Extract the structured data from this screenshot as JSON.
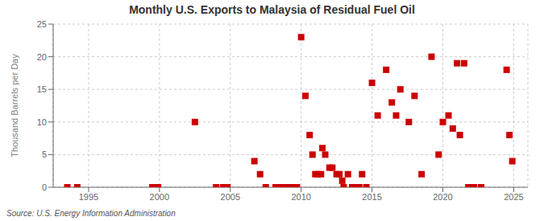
{
  "chart_data": {
    "type": "scatter",
    "title": "Monthly U.S. Exports to Malaysia of Residual Fuel Oil",
    "ylabel": "Thousand Barrels per Day",
    "annotation": "Source: U.S. Energy Information Administration",
    "color": "#cc0000",
    "marker": "square",
    "grid": true,
    "xlim": [
      1992.5,
      2026.0
    ],
    "ylim": [
      0,
      25
    ],
    "xticks": [
      1995,
      2000,
      2005,
      2010,
      2015,
      2020,
      2025
    ],
    "yticks": [
      0,
      5,
      10,
      15,
      20,
      25
    ],
    "x": [
      1993.5,
      1994.2,
      1999.5,
      1999.9,
      2002.5,
      2004.0,
      2004.5,
      2004.8,
      2006.7,
      2007.1,
      2007.5,
      2008.2,
      2008.5,
      2008.8,
      2009.0,
      2009.2,
      2009.5,
      2009.7,
      2010.0,
      2010.3,
      2010.6,
      2010.8,
      2011.0,
      2011.2,
      2011.4,
      2011.5,
      2011.7,
      2012.0,
      2012.2,
      2012.5,
      2012.7,
      2012.9,
      2013.0,
      2013.3,
      2013.6,
      2013.9,
      2014.1,
      2014.3,
      2014.6,
      2015.0,
      2015.4,
      2016.0,
      2016.4,
      2016.7,
      2017.0,
      2017.6,
      2018.0,
      2018.5,
      2019.2,
      2019.7,
      2020.0,
      2020.4,
      2020.7,
      2021.0,
      2021.2,
      2021.5,
      2021.8,
      2022.2,
      2022.7,
      2024.5,
      2024.7,
      2024.9
    ],
    "values": [
      0,
      0,
      0,
      0,
      10,
      0,
      0,
      0,
      4,
      2,
      0,
      0,
      0,
      0,
      0,
      0,
      0,
      0,
      23,
      14,
      8,
      5,
      2,
      2,
      2,
      6,
      5,
      3,
      3,
      2,
      2,
      1,
      0,
      2,
      0,
      0,
      0,
      2,
      0,
      16,
      11,
      18,
      13,
      11,
      15,
      10,
      14,
      2,
      20,
      5,
      10,
      11,
      9,
      19,
      8,
      19,
      0,
      0,
      0,
      18,
      8,
      4
    ]
  }
}
